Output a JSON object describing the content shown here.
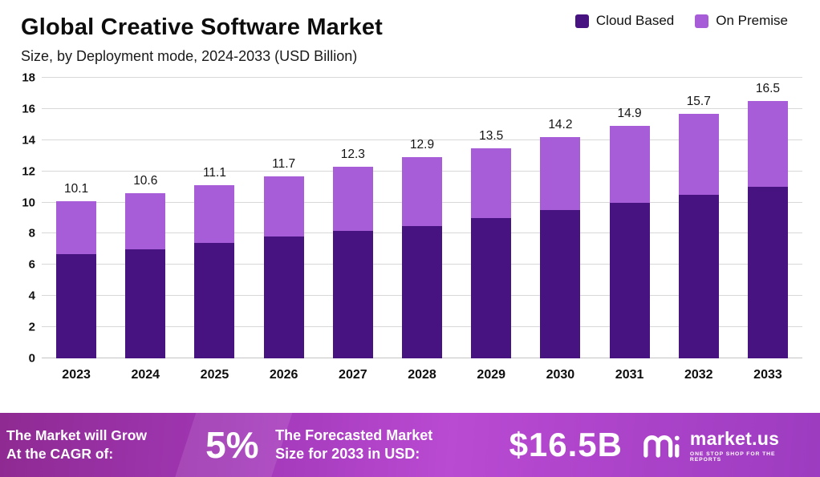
{
  "header": {
    "title": "Global Creative Software Market",
    "subtitle": "Size, by Deployment mode, 2024-2033 (USD Billion)"
  },
  "legend": [
    {
      "label": "Cloud Based",
      "color": "#471380"
    },
    {
      "label": "On Premise",
      "color": "#a75dd8"
    }
  ],
  "chart_data": {
    "type": "bar",
    "stacked": true,
    "title": "Global Creative Software Market",
    "subtitle": "Size, by Deployment mode, 2024-2033 (USD Billion)",
    "xlabel": "",
    "ylabel": "",
    "categories": [
      "2023",
      "2024",
      "2025",
      "2026",
      "2027",
      "2028",
      "2029",
      "2030",
      "2031",
      "2032",
      "2033"
    ],
    "series": [
      {
        "name": "Cloud Based",
        "color": "#471380",
        "values": [
          6.7,
          7.0,
          7.4,
          7.8,
          8.2,
          8.5,
          9.0,
          9.5,
          10.0,
          10.5,
          11.0
        ]
      },
      {
        "name": "On Premise",
        "color": "#a75dd8",
        "values": [
          3.4,
          3.6,
          3.7,
          3.9,
          4.1,
          4.4,
          4.5,
          4.7,
          4.9,
          5.2,
          5.5
        ]
      }
    ],
    "totals": [
      10.1,
      10.6,
      11.1,
      11.7,
      12.3,
      12.9,
      13.5,
      14.2,
      14.9,
      15.7,
      16.5
    ],
    "ylim": [
      0,
      18
    ],
    "ytick_step": 2,
    "grid": true,
    "legend_position": "top-right"
  },
  "banner": {
    "cagr_line1": "The Market will Grow",
    "cagr_line2": "At the CAGR of:",
    "cagr_value": "5%",
    "forecast_line1": "The Forecasted Market",
    "forecast_line2": "Size for 2033 in USD:",
    "forecast_value": "$16.5B",
    "logo_name": "market.us",
    "logo_tagline": "One Stop Shop For The Reports"
  }
}
